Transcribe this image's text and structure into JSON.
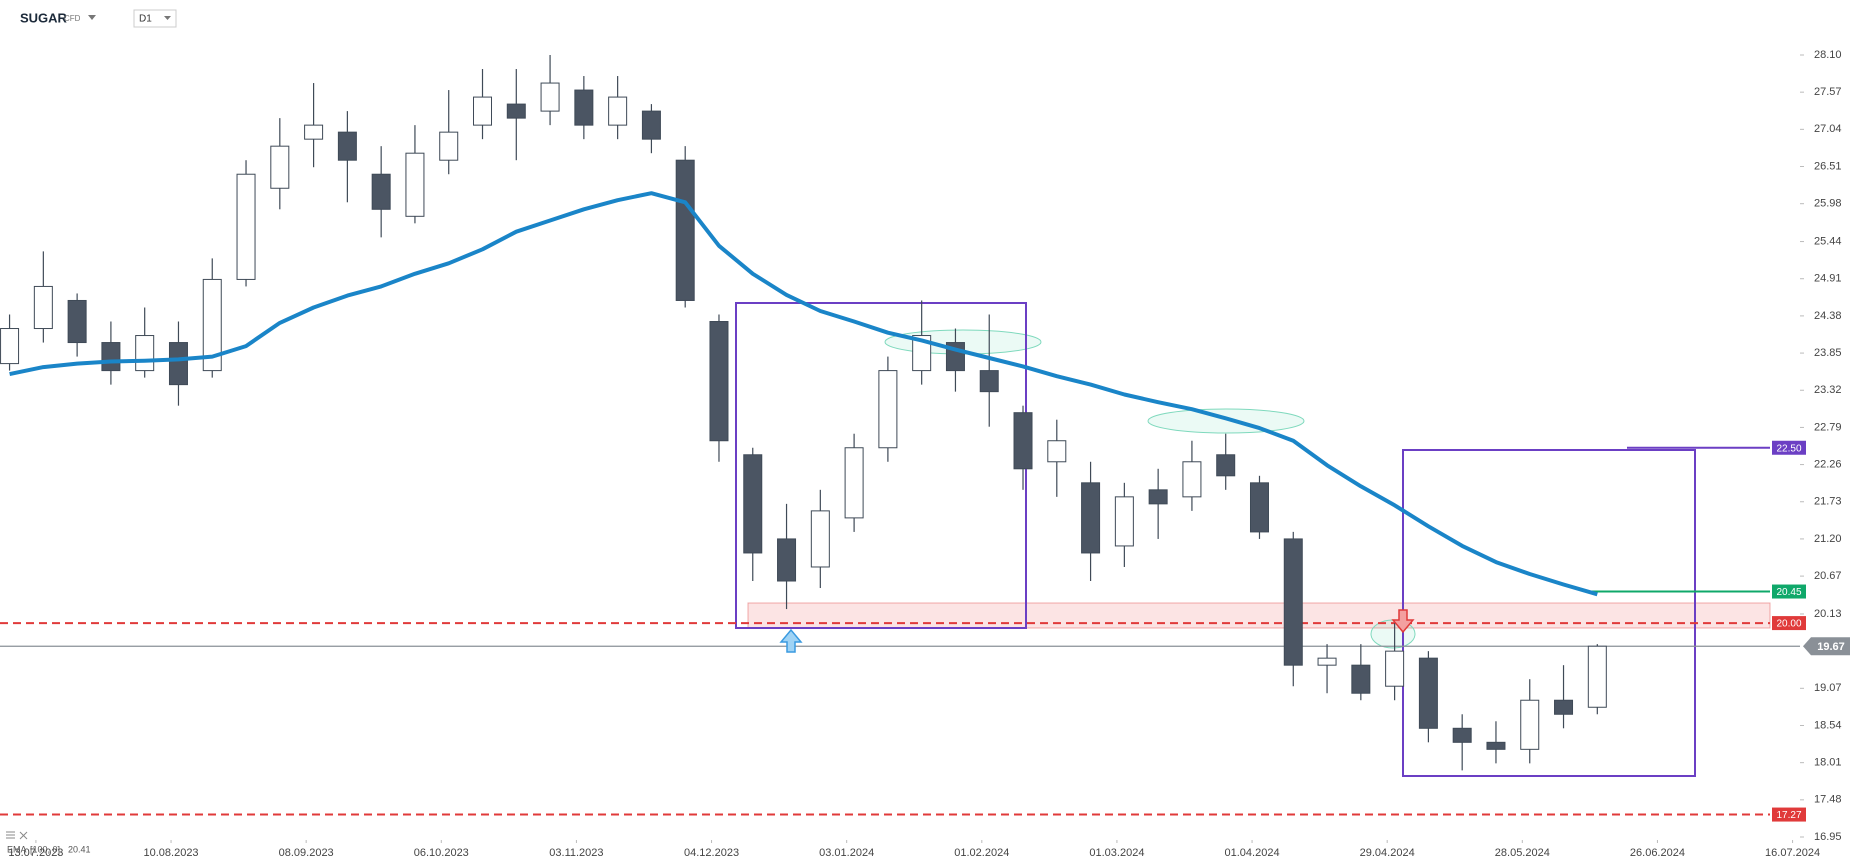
{
  "chart_data": {
    "type": "candlestick",
    "symbol": "SUGAR",
    "instrument": "CFD",
    "timeframe": "D1",
    "up_color": "#ffffff",
    "down_color": "#4b5563",
    "open": [
      23.7,
      24.2,
      24.6,
      24.0,
      23.6,
      24.0,
      23.6,
      24.9,
      26.2,
      26.9,
      27.0,
      26.4,
      25.8,
      26.6,
      27.1,
      27.4,
      27.3,
      27.6,
      27.1,
      27.3,
      26.6,
      24.3,
      22.4,
      21.2,
      20.8,
      21.5,
      22.5,
      23.6,
      24.0,
      23.6,
      23.0,
      22.3,
      22.0,
      21.1,
      21.9,
      21.8,
      22.4,
      22.0,
      21.2,
      19.4,
      19.4,
      19.1,
      19.5,
      18.5,
      18.3,
      18.2,
      18.9,
      18.8
    ],
    "high": [
      24.4,
      25.3,
      24.7,
      24.3,
      24.5,
      24.3,
      25.2,
      26.6,
      27.2,
      27.7,
      27.3,
      26.8,
      27.1,
      27.6,
      27.9,
      27.9,
      28.1,
      27.8,
      27.8,
      27.4,
      26.8,
      24.4,
      22.5,
      21.7,
      21.9,
      22.7,
      23.8,
      24.6,
      24.2,
      24.4,
      23.1,
      22.9,
      22.3,
      22.0,
      22.2,
      22.6,
      22.7,
      22.1,
      21.3,
      19.7,
      19.7,
      20.0,
      19.6,
      18.7,
      18.6,
      19.2,
      19.4,
      19.7
    ],
    "low": [
      23.6,
      24.0,
      23.8,
      23.4,
      23.5,
      23.1,
      23.5,
      24.8,
      25.9,
      26.5,
      26.0,
      25.5,
      25.7,
      26.4,
      26.9,
      26.6,
      27.1,
      26.9,
      26.9,
      26.7,
      24.5,
      22.3,
      20.6,
      20.2,
      20.5,
      21.3,
      22.3,
      23.4,
      23.3,
      22.8,
      21.9,
      21.8,
      20.6,
      20.8,
      21.2,
      21.6,
      21.9,
      21.2,
      19.1,
      19.0,
      18.9,
      18.9,
      18.3,
      17.9,
      18.0,
      18.0,
      18.5,
      18.7
    ],
    "close": [
      24.2,
      24.8,
      24.0,
      23.6,
      24.1,
      23.4,
      24.9,
      26.4,
      26.8,
      27.1,
      26.6,
      25.9,
      26.7,
      27.0,
      27.5,
      27.2,
      27.7,
      27.1,
      27.5,
      26.9,
      24.6,
      22.6,
      21.0,
      20.6,
      21.6,
      22.5,
      23.6,
      24.1,
      23.6,
      23.3,
      22.2,
      22.6,
      21.0,
      21.8,
      21.7,
      22.3,
      22.1,
      21.3,
      19.4,
      19.5,
      19.0,
      19.6,
      18.5,
      18.3,
      18.2,
      18.9,
      18.7,
      19.67
    ],
    "ema": {
      "name": "EMA",
      "params": "[100, 0]",
      "value": 20.41,
      "color": "#1a85c8",
      "values": [
        23.55,
        23.65,
        23.7,
        23.73,
        23.74,
        23.76,
        23.8,
        23.95,
        24.28,
        24.5,
        24.67,
        24.8,
        24.98,
        25.13,
        25.33,
        25.58,
        25.74,
        25.9,
        26.03,
        26.13,
        26.0,
        25.38,
        24.98,
        24.68,
        24.45,
        24.3,
        24.14,
        24.03,
        23.9,
        23.78,
        23.66,
        23.52,
        23.4,
        23.26,
        23.15,
        23.05,
        22.92,
        22.78,
        22.6,
        22.25,
        21.95,
        21.68,
        21.38,
        21.1,
        20.87,
        20.7,
        20.55,
        20.41
      ]
    },
    "ylim": [
      16.95,
      28.1
    ],
    "yticks": [
      {
        "value": 28.1,
        "label": "28.10"
      },
      27.57,
      27.04,
      26.51,
      25.98,
      25.44,
      24.91,
      24.38,
      23.85,
      23.32,
      22.79,
      22.26,
      21.73,
      {
        "value": 21.2,
        "label": "21.20"
      },
      20.67,
      20.13,
      19.07,
      18.54,
      18.01,
      17.48,
      16.95
    ],
    "xlim": [
      -0.283,
      53.0
    ],
    "xticks": [
      {
        "value": 0.78,
        "label": "13.07.2023"
      },
      {
        "value": 4.78,
        "label": "10.08.2023"
      },
      {
        "value": 8.78,
        "label": "08.09.2023"
      },
      {
        "value": 12.78,
        "label": "06.10.2023"
      },
      {
        "value": 16.78,
        "label": "03.11.2023"
      },
      {
        "value": 20.78,
        "label": "04.12.2023"
      },
      {
        "value": 24.78,
        "label": "03.01.2024"
      },
      {
        "value": 28.78,
        "label": "01.02.2024"
      },
      {
        "value": 32.78,
        "label": "01.03.2024"
      },
      {
        "value": 36.78,
        "label": "01.04.2024"
      },
      {
        "value": 40.78,
        "label": "29.04.2024"
      },
      {
        "value": 44.78,
        "label": "28.05.2024"
      },
      {
        "value": 48.78,
        "label": "26.06.2024"
      },
      {
        "value": 52.78,
        "label": "16.07.2024"
      }
    ],
    "levels": [
      {
        "value": 22.5,
        "label": "22.50",
        "color": "#6b3fc4"
      },
      {
        "value": 20.45,
        "color": "#0fa86a"
      },
      {
        "value": 20.0,
        "label": "20.00",
        "color": "#e03a3a"
      },
      {
        "value": 17.27,
        "color": "#e03a3a"
      }
    ],
    "last": {
      "value": 19.67,
      "color": "#8a9097"
    }
  }
}
